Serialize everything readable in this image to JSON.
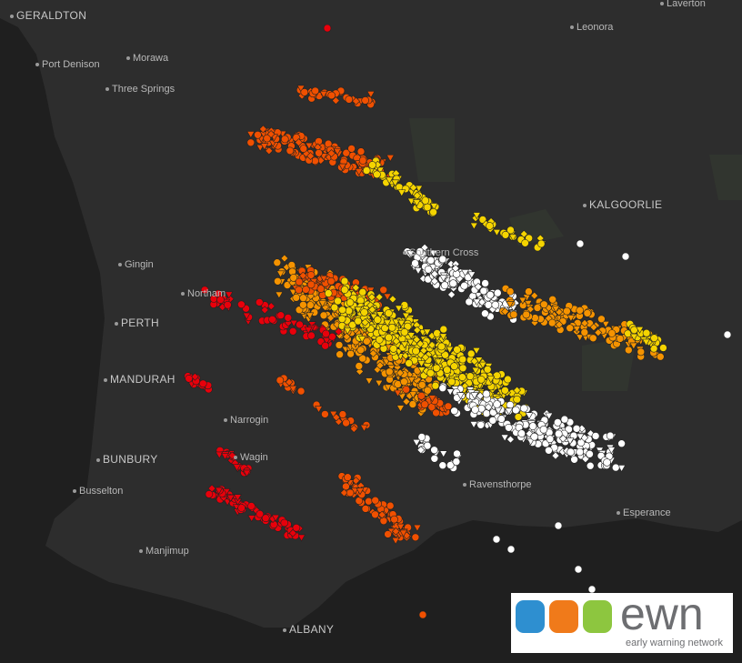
{
  "map": {
    "places": [
      "GERALDTON",
      "Laverton",
      "Leonora",
      "Port Denison",
      "Morawa",
      "Three Springs",
      "KALGOORLIE",
      "Southern Cross",
      "Gingin",
      "Northam",
      "PERTH",
      "MANDURAH",
      "Narrogin",
      "Wagin",
      "BUNBURY",
      "Busselton",
      "Ravensthorpe",
      "Esperance",
      "Manjimup",
      "ALBANY"
    ]
  },
  "logo": {
    "mark": "ewn",
    "tagline": "early warning network"
  }
}
